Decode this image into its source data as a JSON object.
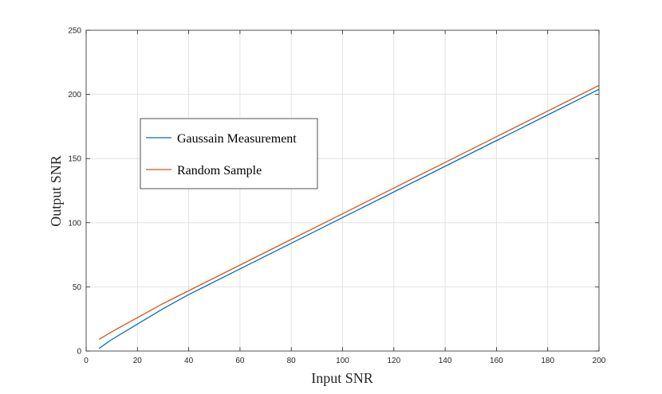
{
  "chart_data": {
    "type": "line",
    "title": "",
    "xlabel": "Input SNR",
    "ylabel": "Output SNR",
    "xlim": [
      0,
      200
    ],
    "ylim": [
      0,
      250
    ],
    "xticks": [
      0,
      20,
      40,
      60,
      80,
      100,
      120,
      140,
      160,
      180,
      200
    ],
    "yticks": [
      0,
      50,
      100,
      150,
      200,
      250
    ],
    "grid": true,
    "legend_position": "upper-left",
    "series": [
      {
        "name": "Gaussain Measurement",
        "color": "#0072BD",
        "x": [
          5,
          10,
          20,
          30,
          40,
          60,
          80,
          100,
          120,
          140,
          160,
          180,
          200
        ],
        "y": [
          2,
          9,
          21,
          33,
          44,
          64,
          84,
          104,
          124,
          144,
          164,
          184,
          204
        ]
      },
      {
        "name": "Random Sample",
        "color": "#D95319",
        "x": [
          5,
          10,
          20,
          30,
          40,
          60,
          80,
          100,
          120,
          140,
          160,
          180,
          200
        ],
        "y": [
          9,
          15,
          26,
          37,
          47,
          67,
          87,
          107,
          127,
          147,
          167,
          187,
          207
        ]
      }
    ]
  }
}
